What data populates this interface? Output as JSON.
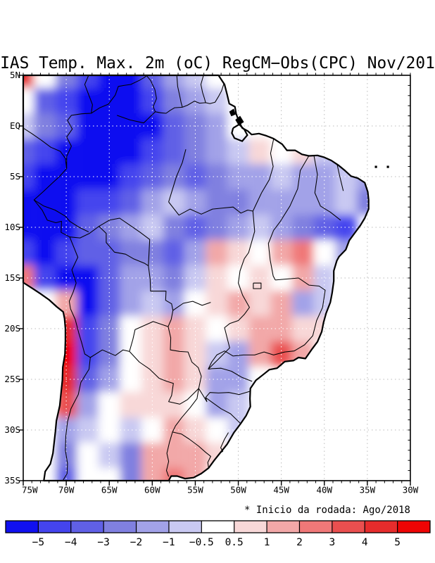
{
  "title": "IAS Temp. Max. 2m (oC) RegCM−Obs(CPC) Nov/201",
  "annotation": "* Inicio da rodada: Ago/2018",
  "axes": {
    "lat_labels": [
      "5N",
      "EQ",
      "5S",
      "10S",
      "15S",
      "20S",
      "25S",
      "30S",
      "35S"
    ],
    "lon_labels": [
      "75W",
      "70W",
      "65W",
      "60W",
      "55W",
      "50W",
      "45W",
      "40W",
      "35W",
      "30W"
    ]
  },
  "colorbar": {
    "tick_labels": [
      "−5",
      "−4",
      "−3",
      "−2",
      "−1",
      "−0.5",
      "0.5",
      "1",
      "2",
      "3",
      "4",
      "5"
    ],
    "colors": [
      "#1010f0",
      "#4444ee",
      "#6060e6",
      "#8080e0",
      "#a2a2e8",
      "#c9c9f2",
      "#ffffff",
      "#f8d8d8",
      "#f2a8a8",
      "#f07878",
      "#ea4f4f",
      "#e62c2c",
      "#ee0404"
    ]
  },
  "chart_data": {
    "type": "heatmap",
    "title": "IAS Temp. Max. 2m (oC) RegCM−Obs(CPC) Nov/201",
    "units": "oC",
    "note": "* Inicio da rodada: Ago/2018",
    "legend_levels": [
      -5,
      -4,
      -3,
      -2,
      -1,
      -0.5,
      0.5,
      1,
      2,
      3,
      4,
      5
    ],
    "xlabels": [
      "75W",
      "70W",
      "65W",
      "60W",
      "55W",
      "50W",
      "45W",
      "40W",
      "35W",
      "30W"
    ],
    "ylabels": [
      "5N",
      "EQ",
      "5S",
      "10S",
      "15S",
      "20S",
      "25S",
      "30S",
      "35S"
    ],
    "lon_w": [
      75,
      72.5,
      70,
      67.5,
      65,
      62.5,
      60,
      57.5,
      55,
      52.5,
      50,
      47.5,
      45,
      42.5,
      40,
      37.5,
      35,
      32.5,
      30
    ],
    "lat": [
      5,
      2.5,
      0,
      -2.5,
      -5,
      -7.5,
      -10,
      -12.5,
      -15,
      -17.5,
      -20,
      -22.5,
      -25,
      -27.5,
      -30,
      -32.5,
      -35
    ],
    "grid": [
      [
        4,
        -0.5,
        -3,
        -4.5,
        -5.5,
        -5.5,
        -4,
        -2,
        -0.7,
        -0.5,
        null,
        null,
        null,
        null,
        null,
        null,
        null,
        null,
        null
      ],
      [
        -0.5,
        -3.5,
        -4.5,
        -5.5,
        -5.5,
        -5.5,
        -4.5,
        -2.5,
        -2,
        -0.7,
        0,
        null,
        null,
        null,
        null,
        null,
        null,
        null,
        null
      ],
      [
        -0.7,
        -3,
        -4,
        -5.5,
        -5.5,
        -5.5,
        -5.5,
        -4,
        -3,
        -2,
        -0.5,
        null,
        null,
        null,
        null,
        null,
        null,
        null,
        null
      ],
      [
        -4,
        -4.5,
        -5.5,
        -5.5,
        -5.5,
        -5.5,
        -5,
        -4,
        -3,
        -2,
        -1,
        0.7,
        -0.5,
        0.7,
        -0.7,
        -1.5,
        null,
        null,
        null
      ],
      [
        -5,
        -5.5,
        -5.5,
        -5.5,
        -5.5,
        -5,
        -4,
        -3,
        -3.5,
        -3,
        -2,
        -1.5,
        -1,
        -1.5,
        -2,
        -1,
        -1.5,
        null,
        null
      ],
      [
        -5.5,
        -5.5,
        -5.5,
        -5,
        -4.5,
        -3.5,
        -1.5,
        -0.7,
        -2,
        -3,
        -3,
        -2,
        -1.5,
        -1.5,
        -2,
        -0.7,
        -2.5,
        null,
        null
      ],
      [
        -5.5,
        -5.5,
        -5.5,
        -4,
        -3,
        -2,
        -1,
        -2.5,
        -3.5,
        -2.5,
        -1.5,
        -0.7,
        -1.5,
        -2.5,
        -3.5,
        -4.5,
        null,
        null,
        null
      ],
      [
        -5,
        -5.5,
        -5,
        -4,
        -3.5,
        -3,
        -2.5,
        -3.5,
        -2,
        1.2,
        0.5,
        0.3,
        1.5,
        2.5,
        -0.5,
        -2,
        null,
        null,
        null
      ],
      [
        2.5,
        -5,
        -5.5,
        -5.5,
        -4,
        -2,
        -1.5,
        -2.5,
        -1,
        0.7,
        -0.5,
        0.7,
        0.3,
        1,
        -1,
        -0.5,
        null,
        null,
        null
      ],
      [
        null,
        -0.5,
        1.5,
        -5.5,
        -4,
        -1.5,
        -1,
        -1.5,
        -0.5,
        0.5,
        1,
        0.5,
        1.2,
        -2,
        -1,
        null,
        null,
        null,
        null
      ],
      [
        null,
        null,
        4.5,
        -4.5,
        -2.5,
        -0.5,
        0.5,
        1,
        0.7,
        -0.5,
        0.5,
        1.5,
        1,
        0.5,
        0.7,
        null,
        null,
        null,
        null
      ],
      [
        null,
        null,
        5.5,
        -5,
        -2.5,
        -0.5,
        0.7,
        1,
        0.5,
        -0.7,
        -1.5,
        1,
        3.2,
        1.5,
        null,
        null,
        null,
        null,
        null
      ],
      [
        null,
        null,
        4,
        -3.5,
        -1.5,
        0.3,
        0.7,
        1.2,
        0.7,
        -1.5,
        -2,
        -0.5,
        null,
        null,
        null,
        null,
        null,
        null,
        null
      ],
      [
        null,
        null,
        3,
        -2,
        -0.5,
        0.7,
        0.7,
        0.7,
        0.3,
        -1.5,
        -1,
        null,
        null,
        null,
        null,
        null,
        null,
        null,
        null
      ],
      [
        null,
        null,
        -1.5,
        -1,
        -0.3,
        -1,
        -0.5,
        1,
        0.7,
        0.3,
        -1,
        null,
        null,
        null,
        null,
        null,
        null,
        null,
        null
      ],
      [
        null,
        -0.5,
        -3,
        -0.5,
        -1,
        -2.5,
        1.5,
        1.5,
        1.5,
        0.7,
        null,
        null,
        null,
        null,
        null,
        null,
        null,
        null,
        null
      ],
      [
        null,
        -0.5,
        -4,
        -0.5,
        -0.5,
        -2.5,
        1,
        2,
        1.5,
        null,
        null,
        null,
        null,
        null,
        null,
        null,
        null,
        null,
        null
      ]
    ]
  }
}
